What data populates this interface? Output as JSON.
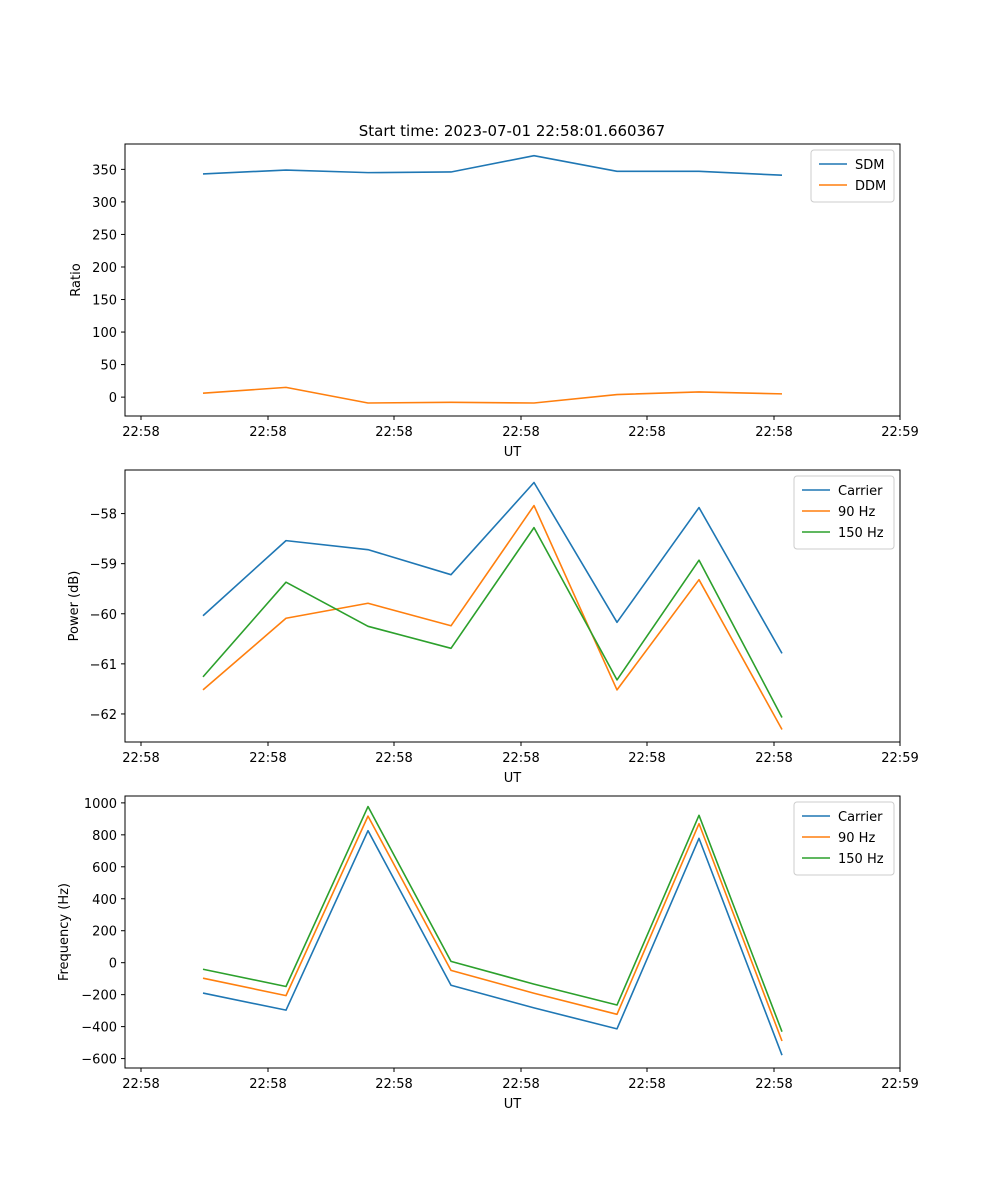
{
  "figure_title": "Start time: 2023-07-01 22:58:01.660367",
  "colors": {
    "blue": "#1f77b4",
    "orange": "#ff7f0e",
    "green": "#2ca02c"
  },
  "chart_data": [
    {
      "type": "line",
      "title": "Start time: 2023-07-01 22:58:01.660367",
      "xlabel": "UT",
      "ylabel": "Ratio",
      "x_tick_labels": [
        "22:58",
        "22:58",
        "22:58",
        "22:58",
        "22:58",
        "22:58",
        "22:58"
      ],
      "x_tick_labels_end": "22:59",
      "x_points": 8,
      "x_range": [
        -0.2,
        9.0
      ],
      "ylim": [
        -29,
        389
      ],
      "y_ticks": [
        0,
        50,
        100,
        150,
        200,
        250,
        300,
        350
      ],
      "legend_position": "top-right",
      "grid": false,
      "series": [
        {
          "name": "SDM",
          "color": "#1f77b4",
          "values": [
            343,
            349,
            345,
            346,
            371,
            347,
            347,
            341
          ]
        },
        {
          "name": "DDM",
          "color": "#ff7f0e",
          "values": [
            6,
            15,
            -9,
            -8,
            -9,
            4,
            8,
            5
          ]
        }
      ]
    },
    {
      "type": "line",
      "title": "",
      "xlabel": "UT",
      "ylabel": "Power (dB)",
      "x_tick_labels": [
        "22:58",
        "22:58",
        "22:58",
        "22:58",
        "22:58",
        "22:58",
        "22:58"
      ],
      "x_tick_labels_end": "22:59",
      "x_points": 8,
      "x_range": [
        -0.2,
        9.0
      ],
      "ylim": [
        -62.56,
        -57.13
      ],
      "y_ticks": [
        -62,
        -61,
        -60,
        -59,
        -58
      ],
      "legend_position": "top-right",
      "grid": false,
      "series": [
        {
          "name": "Carrier",
          "color": "#1f77b4",
          "values": [
            -60.04,
            -58.54,
            -58.72,
            -59.22,
            -57.38,
            -60.17,
            -57.88,
            -60.79
          ]
        },
        {
          "name": "90 Hz",
          "color": "#ff7f0e",
          "values": [
            -61.52,
            -60.09,
            -59.79,
            -60.24,
            -57.84,
            -61.52,
            -59.32,
            -62.31
          ]
        },
        {
          "name": "150 Hz",
          "color": "#2ca02c",
          "values": [
            -61.26,
            -59.37,
            -60.25,
            -60.69,
            -58.28,
            -61.32,
            -58.93,
            -62.07
          ]
        }
      ]
    },
    {
      "type": "line",
      "title": "",
      "xlabel": "UT",
      "ylabel": "Frequency (Hz)",
      "x_tick_labels": [
        "22:58",
        "22:58",
        "22:58",
        "22:58",
        "22:58",
        "22:58",
        "22:58"
      ],
      "x_tick_labels_end": "22:59",
      "x_points": 8,
      "x_range": [
        -0.2,
        9.0
      ],
      "ylim": [
        -659,
        1043
      ],
      "y_ticks": [
        -600,
        -400,
        -200,
        0,
        200,
        400,
        600,
        800,
        1000
      ],
      "legend_position": "top-right",
      "grid": false,
      "series": [
        {
          "name": "Carrier",
          "color": "#1f77b4",
          "values": [
            -190,
            -297,
            826,
            -141,
            -283,
            -414,
            778,
            -579
          ]
        },
        {
          "name": "90 Hz",
          "color": "#ff7f0e",
          "values": [
            -97,
            -206,
            917,
            -48,
            -191,
            -323,
            870,
            -490
          ]
        },
        {
          "name": "150 Hz",
          "color": "#2ca02c",
          "values": [
            -41,
            -149,
            977,
            8,
            -134,
            -265,
            922,
            -432
          ]
        }
      ]
    }
  ]
}
